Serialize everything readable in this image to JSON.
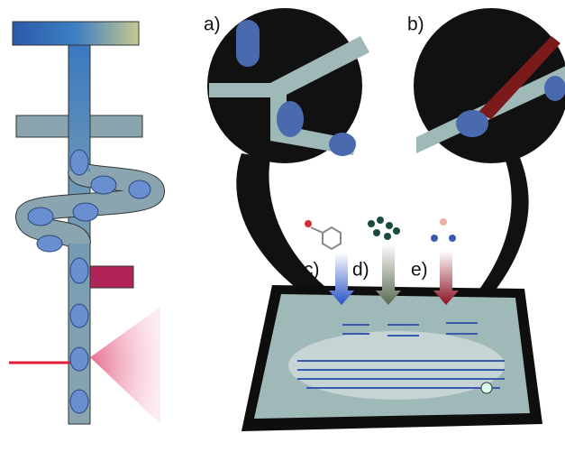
{
  "panel_labels": [
    "a)",
    "b)",
    "c)",
    "d)",
    "e)"
  ]
}
